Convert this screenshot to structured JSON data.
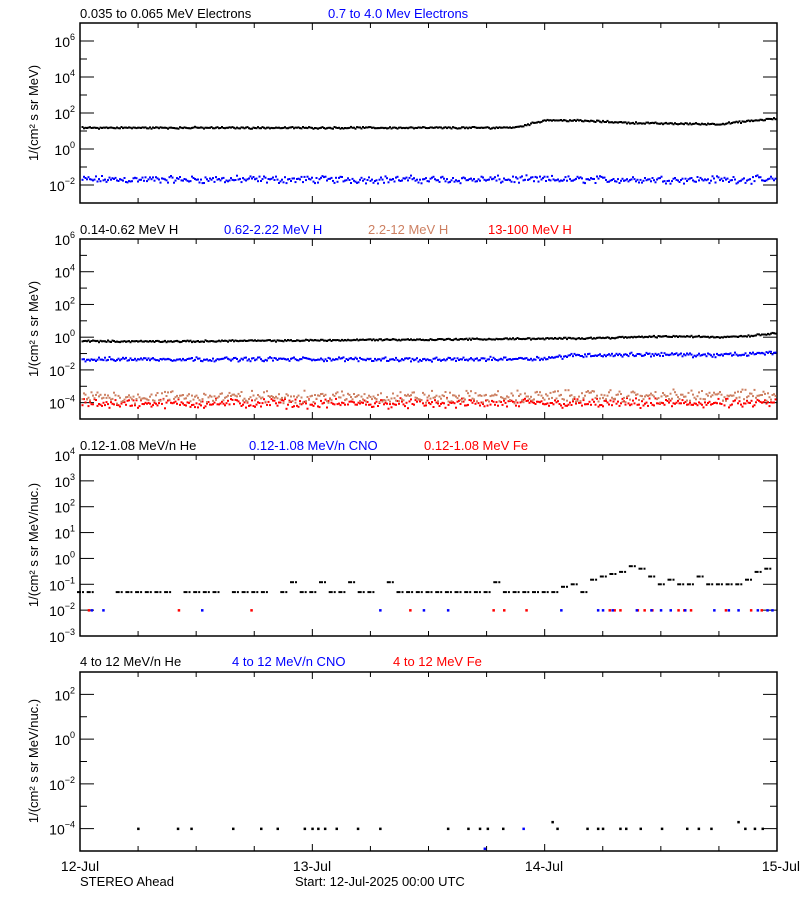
{
  "chart_data": [
    {
      "type": "scatter",
      "ylabel": "1/(cm² s sr MeV)",
      "yscale": "log",
      "ylim_exponents": [
        -3,
        7
      ],
      "major_tick_exponents": [
        6,
        4,
        2,
        0,
        -2
      ],
      "minor_tick_exponents": [
        5,
        3,
        1,
        -1
      ],
      "sampling": {
        "start": "12-Jul 00:00",
        "step_hours": 3
      },
      "series": [
        {
          "name": "0.035 to 0.065 MeV Electrons",
          "color": "#000000",
          "scatter_decades": 0.06,
          "values": [
            15,
            15,
            15,
            15,
            15,
            15,
            15,
            15,
            15,
            15,
            15,
            15,
            15,
            15,
            15,
            16,
            40,
            38,
            33,
            28,
            26,
            25,
            24,
            35,
            50
          ]
        },
        {
          "name": "0.7 to 4.0 Mev Electrons",
          "color": "#0000ff",
          "scatter_decades": 0.25,
          "values": [
            0.02,
            0.02,
            0.02,
            0.02,
            0.02,
            0.02,
            0.02,
            0.02,
            0.02,
            0.02,
            0.02,
            0.02,
            0.02,
            0.02,
            0.02,
            0.02,
            0.02,
            0.02,
            0.02,
            0.02,
            0.02,
            0.02,
            0.02,
            0.02,
            0.02
          ]
        }
      ]
    },
    {
      "type": "scatter",
      "ylabel": "1/(cm² s sr MeV)",
      "yscale": "log",
      "ylim_exponents": [
        -5,
        6
      ],
      "major_tick_exponents": [
        6,
        4,
        2,
        0,
        -2,
        -4
      ],
      "minor_tick_exponents": [
        5,
        3,
        1,
        -1,
        -3
      ],
      "sampling": {
        "start": "12-Jul 00:00",
        "step_hours": 3
      },
      "series": [
        {
          "name": "0.14-0.62 MeV H",
          "color": "#000000",
          "scatter_decades": 0.06,
          "values": [
            0.6,
            0.55,
            0.55,
            0.55,
            0.55,
            0.6,
            0.6,
            0.6,
            0.65,
            0.65,
            0.7,
            0.7,
            0.7,
            0.75,
            0.75,
            0.8,
            0.8,
            0.85,
            0.9,
            1.0,
            1.1,
            1.1,
            1.0,
            1.2,
            1.8
          ]
        },
        {
          "name": "0.62-2.22 MeV H",
          "color": "#0000ff",
          "scatter_decades": 0.15,
          "values": [
            0.04,
            0.045,
            0.045,
            0.045,
            0.045,
            0.045,
            0.045,
            0.045,
            0.045,
            0.045,
            0.045,
            0.045,
            0.04,
            0.045,
            0.045,
            0.05,
            0.05,
            0.08,
            0.08,
            0.085,
            0.09,
            0.08,
            0.08,
            0.09,
            0.12
          ]
        },
        {
          "name": "2.2-12 MeV H",
          "color": "#cd8062",
          "scatter_decades": 0.45,
          "values": [
            0.00022,
            0.00022,
            0.00022,
            0.00022,
            0.00022,
            0.00022,
            0.00022,
            0.00022,
            0.00022,
            0.00022,
            0.00022,
            0.00022,
            0.00022,
            0.00022,
            0.00022,
            0.00022,
            0.00025,
            0.00025,
            0.00025,
            0.00025,
            0.00025,
            0.00025,
            0.00025,
            0.00028,
            0.00035
          ]
        },
        {
          "name": "13-100 MeV H",
          "color": "#ff0000",
          "scatter_decades": 0.35,
          "values": [
            9e-05,
            9e-05,
            9e-05,
            9e-05,
            9e-05,
            9e-05,
            9e-05,
            9e-05,
            9e-05,
            9e-05,
            9e-05,
            9e-05,
            9e-05,
            9e-05,
            9e-05,
            9e-05,
            9e-05,
            9e-05,
            9e-05,
            9e-05,
            9e-05,
            9e-05,
            9e-05,
            9e-05,
            9e-05
          ]
        }
      ]
    },
    {
      "type": "scatter",
      "ylabel": "1/(cm² s sr MeV/nuc.)",
      "yscale": "log",
      "ylim_exponents": [
        -3,
        4
      ],
      "major_tick_exponents": [
        4,
        3,
        2,
        1,
        0,
        -1,
        -2,
        -3
      ],
      "minor_tick_exponents": [],
      "series": [
        {
          "name": "0.12-1.08 MeV/n He",
          "color": "#000000",
          "sampling": {
            "start": "12-Jul 00:00",
            "step_hours": 1
          },
          "values": [
            0.05,
            0.05,
            null,
            null,
            0.05,
            0.05,
            0.05,
            0.05,
            0.05,
            0.05,
            null,
            0.05,
            0.05,
            0.05,
            0.05,
            null,
            0.05,
            0.05,
            0.05,
            0.05,
            null,
            0.05,
            0.12,
            0.05,
            0.05,
            0.12,
            0.05,
            0.05,
            0.12,
            0.05,
            0.05,
            null,
            0.12,
            0.05,
            0.05,
            0.05,
            0.05,
            0.05,
            0.05,
            0.05,
            0.05,
            0.05,
            0.05,
            0.12,
            0.05,
            0.05,
            0.05,
            0.05,
            0.05,
            0.05,
            0.08,
            0.1,
            0.05,
            0.15,
            0.2,
            0.25,
            0.3,
            0.5,
            0.4,
            0.2,
            0.1,
            0.15,
            0.1,
            0.1,
            0.2,
            0.1,
            0.1,
            0.1,
            0.1,
            0.15,
            0.3,
            0.4
          ]
        },
        {
          "name": "0.12-1.08 MeV/n CNO",
          "color": "#0000ff",
          "points": [
            [
              "12-Jul 01:12",
              0.01
            ],
            [
              "12-Jul 02:24",
              0.01
            ],
            [
              "12-Jul 12:36",
              0.01
            ],
            [
              "13-Jul 07:00",
              0.01
            ],
            [
              "13-Jul 11:30",
              0.01
            ],
            [
              "13-Jul 14:00",
              0.01
            ],
            [
              "14-Jul 01:42",
              0.01
            ],
            [
              "14-Jul 05:30",
              0.01
            ],
            [
              "14-Jul 06:00",
              0.01
            ],
            [
              "14-Jul 07:00",
              0.01
            ],
            [
              "14-Jul 09:30",
              0.01
            ],
            [
              "14-Jul 11:00",
              0.01
            ],
            [
              "14-Jul 12:00",
              0.01
            ],
            [
              "14-Jul 13:00",
              0.01
            ],
            [
              "14-Jul 14:30",
              0.01
            ],
            [
              "14-Jul 17:30",
              0.01
            ],
            [
              "14-Jul 19:00",
              0.01
            ],
            [
              "14-Jul 20:00",
              0.01
            ],
            [
              "14-Jul 22:00",
              0.01
            ],
            [
              "14-Jul 23:00",
              0.01
            ],
            [
              "14-Jul 23:30",
              0.01
            ]
          ]
        },
        {
          "name": "0.12-1.08 MeV Fe",
          "color": "#ff0000",
          "points": [
            [
              "12-Jul 00:54",
              0.01
            ],
            [
              "12-Jul 10:12",
              0.01
            ],
            [
              "12-Jul 17:42",
              0.01
            ],
            [
              "13-Jul 10:06",
              0.01
            ],
            [
              "13-Jul 18:42",
              0.01
            ],
            [
              "13-Jul 19:48",
              0.01
            ],
            [
              "13-Jul 22:06",
              0.01
            ],
            [
              "14-Jul 06:42",
              0.01
            ],
            [
              "14-Jul 07:12",
              0.01
            ],
            [
              "14-Jul 07:48",
              0.01
            ],
            [
              "14-Jul 09:36",
              0.01
            ],
            [
              "14-Jul 10:18",
              0.01
            ],
            [
              "14-Jul 11:06",
              0.01
            ],
            [
              "14-Jul 13:48",
              0.01
            ],
            [
              "14-Jul 14:24",
              0.01
            ],
            [
              "14-Jul 15:06",
              0.01
            ],
            [
              "14-Jul 18:42",
              0.01
            ],
            [
              "14-Jul 21:18",
              0.01
            ],
            [
              "14-Jul 22:24",
              0.01
            ]
          ]
        }
      ]
    },
    {
      "type": "scatter",
      "ylabel": "1/(cm² s sr MeV/nuc.)",
      "yscale": "log",
      "ylim_exponents": [
        -5,
        3
      ],
      "major_tick_exponents": [
        2,
        0,
        -2,
        -4
      ],
      "minor_tick_exponents": [
        1,
        -1,
        -3
      ],
      "series": [
        {
          "name": "4 to 12 MeV/n He",
          "color": "#000000",
          "points": [
            [
              "12-Jul 06:00",
              0.0001
            ],
            [
              "12-Jul 10:06",
              0.0001
            ],
            [
              "12-Jul 11:30",
              0.0001
            ],
            [
              "12-Jul 15:48",
              0.0001
            ],
            [
              "12-Jul 18:42",
              0.0001
            ],
            [
              "12-Jul 20:24",
              0.0001
            ],
            [
              "12-Jul 23:12",
              0.0001
            ],
            [
              "13-Jul 00:00",
              0.0001
            ],
            [
              "13-Jul 00:36",
              0.0001
            ],
            [
              "13-Jul 01:18",
              0.0001
            ],
            [
              "13-Jul 02:30",
              0.0001
            ],
            [
              "13-Jul 04:42",
              0.0001
            ],
            [
              "13-Jul 07:00",
              0.0001
            ],
            [
              "13-Jul 14:00",
              0.0001
            ],
            [
              "13-Jul 16:06",
              0.0001
            ],
            [
              "13-Jul 17:18",
              0.0001
            ],
            [
              "13-Jul 18:06",
              0.0001
            ],
            [
              "13-Jul 19:42",
              0.0001
            ],
            [
              "14-Jul 00:48",
              0.0002
            ],
            [
              "14-Jul 01:18",
              0.0001
            ],
            [
              "14-Jul 04:24",
              0.0001
            ],
            [
              "14-Jul 05:30",
              0.0001
            ],
            [
              "14-Jul 06:00",
              0.0001
            ],
            [
              "14-Jul 07:48",
              0.0001
            ],
            [
              "14-Jul 08:24",
              0.0001
            ],
            [
              "14-Jul 09:54",
              0.0001
            ],
            [
              "14-Jul 12:06",
              0.0001
            ],
            [
              "14-Jul 14:42",
              0.0001
            ],
            [
              "14-Jul 15:54",
              0.0001
            ],
            [
              "14-Jul 17:12",
              0.0001
            ],
            [
              "14-Jul 20:00",
              0.0002
            ],
            [
              "14-Jul 20:42",
              0.0001
            ],
            [
              "14-Jul 21:42",
              0.0001
            ],
            [
              "14-Jul 22:30",
              0.0001
            ]
          ]
        },
        {
          "name": "4 to 12 MeV/n CNO",
          "color": "#0000ff",
          "points": [
            [
              "13-Jul 17:48",
              1.3e-05
            ],
            [
              "13-Jul 21:48",
              0.0001
            ]
          ]
        },
        {
          "name": "4 to 12 MeV Fe",
          "color": "#ff0000",
          "points": []
        }
      ]
    }
  ],
  "x_axis": {
    "tick_labels": [
      "12-Jul",
      "13-Jul",
      "14-Jul",
      "15-Jul"
    ],
    "range": [
      "12-Jul 00:00",
      "15-Jul 00:00"
    ],
    "minor_tick_hours": 6
  },
  "footer": {
    "spacecraft": "STEREO Ahead",
    "start": "Start: 12-Jul-2025 00:00 UTC"
  }
}
